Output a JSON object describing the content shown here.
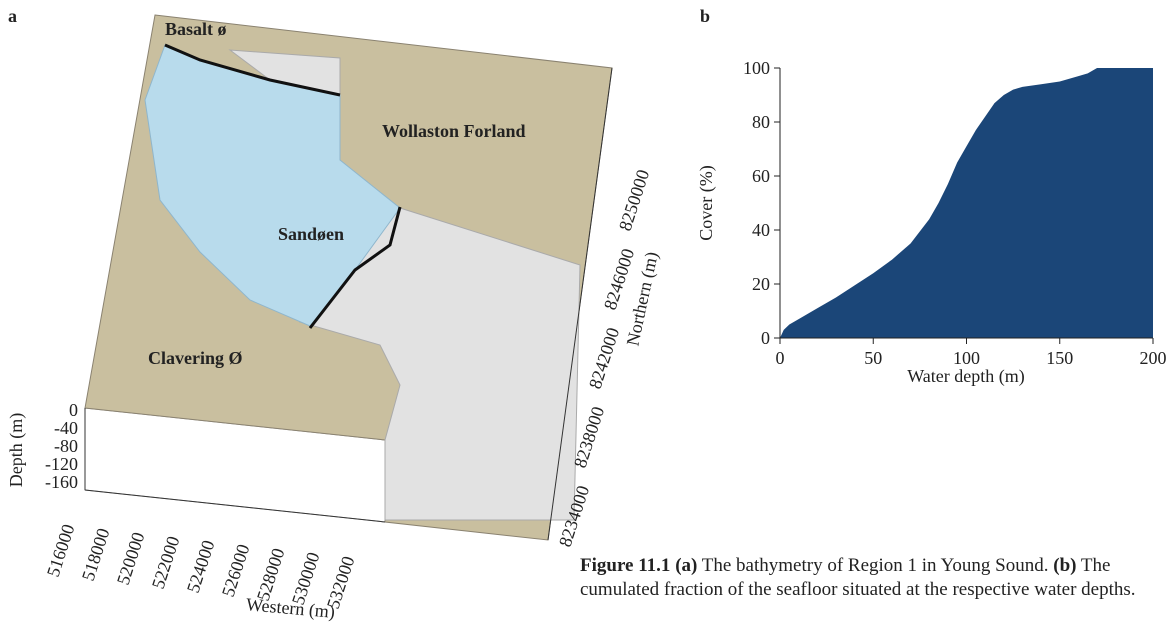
{
  "panel_a": {
    "label": "a",
    "places": [
      "Basalt ø",
      "Wollaston Forland",
      "Sandøen",
      "Clavering Ø"
    ],
    "depth_label": "Depth (m)",
    "depth_ticks": [
      0,
      -40,
      -80,
      -120,
      -160
    ],
    "western_label": "Western (m)",
    "western_ticks": [
      516000,
      518000,
      520000,
      522000,
      524000,
      526000,
      528000,
      530000,
      532000
    ],
    "northern_label": "Northern (m)",
    "northern_ticks": [
      8234000,
      8238000,
      8242000,
      8246000,
      8250000
    ]
  },
  "chart_data": {
    "type": "area",
    "panel_label": "b",
    "x": [
      0,
      2,
      5,
      10,
      20,
      30,
      40,
      50,
      60,
      70,
      80,
      85,
      90,
      95,
      100,
      105,
      110,
      115,
      120,
      125,
      130,
      140,
      150,
      160,
      165,
      170,
      200
    ],
    "values": [
      0,
      3,
      5,
      7,
      11,
      15,
      19.5,
      24,
      29,
      35,
      44,
      50,
      57,
      65,
      71,
      77,
      82,
      87,
      90,
      92,
      93,
      94,
      95,
      97,
      98,
      100,
      100
    ],
    "color": "#1b4678",
    "xlim": [
      0,
      200
    ],
    "xticks": [
      0,
      50,
      100,
      150,
      200
    ],
    "ylim": [
      0,
      100
    ],
    "yticks": [
      0,
      20,
      40,
      60,
      80,
      100
    ],
    "xlabel": "Water depth (m)",
    "ylabel": "Cover (%)"
  },
  "caption": {
    "runs": [
      {
        "text": "Figure 11.1",
        "bold": true
      },
      {
        "text": " (a)",
        "bold": true
      },
      {
        "text": " The bathymetry of Region 1 in Young Sound. ",
        "bold": false
      },
      {
        "text": "(b)",
        "bold": true
      },
      {
        "text": " The cumulated fraction of the seafloor situated at the respective water depths.",
        "bold": false
      }
    ]
  }
}
